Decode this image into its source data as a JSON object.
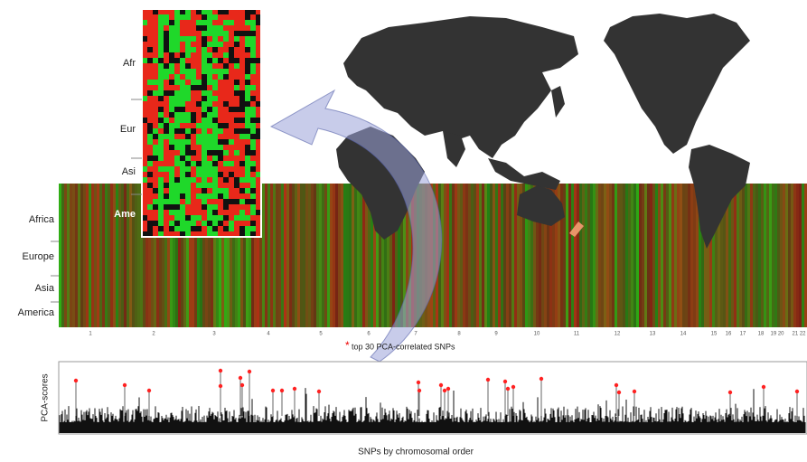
{
  "inset": {
    "labels": [
      "Afr",
      "Eur",
      "Asi",
      "Ame"
    ]
  },
  "heatmap": {
    "labels": [
      "Africa",
      "Europe",
      "Asia",
      "America"
    ],
    "chromosomes": [
      "1",
      "2",
      "3",
      "4",
      "5",
      "6",
      "7",
      "8",
      "9",
      "10",
      "11",
      "12",
      "13",
      "14",
      "15",
      "16",
      "17",
      "18",
      "19 20",
      "21 22"
    ]
  },
  "legend": {
    "marker": "*",
    "text": "top 30 PCA-correlated SNPs"
  },
  "scores": {
    "y_label": "PCA-scores",
    "x_label": "SNPs by chromosomal order"
  }
}
